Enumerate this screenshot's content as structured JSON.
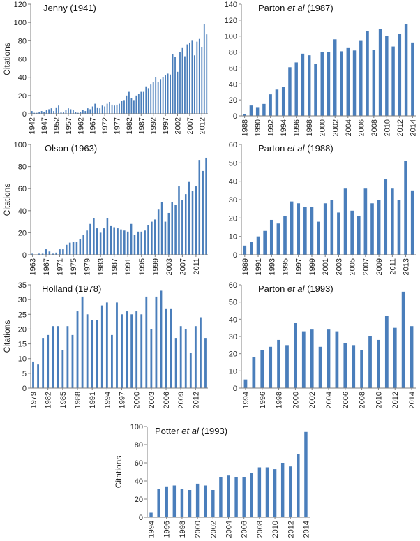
{
  "figure": {
    "ylabel": "Citations",
    "bar_color": "#4a7ebb",
    "axis_color": "#808080"
  },
  "chart_data": [
    {
      "id": "jenny",
      "type": "bar",
      "title": "Jenny (1941)",
      "title_parts": [
        {
          "text": "Jenny (1941)",
          "italic": false
        }
      ],
      "ylabel": "Citations",
      "xlabel": "",
      "ylim": [
        0,
        120
      ],
      "yticks": [
        0,
        20,
        40,
        60,
        80,
        100,
        120
      ],
      "x_start": 1942,
      "x_end": 2014,
      "xtick_labels": [
        "1942",
        "1947",
        "1952",
        "1957",
        "1962",
        "1967",
        "1972",
        "1977",
        "1982",
        "1987",
        "1992",
        "1997",
        "2002",
        "2007",
        "2012"
      ],
      "values": [
        3,
        1,
        1,
        2,
        3,
        2,
        4,
        5,
        6,
        3,
        7,
        9,
        2,
        2,
        4,
        6,
        5,
        4,
        2,
        1,
        2,
        4,
        3,
        6,
        5,
        8,
        11,
        7,
        6,
        9,
        8,
        11,
        13,
        10,
        9,
        10,
        11,
        14,
        15,
        20,
        24,
        17,
        15,
        20,
        22,
        24,
        24,
        30,
        28,
        32,
        35,
        40,
        35,
        38,
        40,
        42,
        44,
        43,
        65,
        62,
        46,
        68,
        72,
        63,
        76,
        78,
        80,
        64,
        79,
        82,
        73,
        98,
        87
      ]
    },
    {
      "id": "parton1987",
      "type": "bar",
      "title": "Parton et al (1987)",
      "title_parts": [
        {
          "text": "Parton ",
          "italic": false
        },
        {
          "text": "et al",
          "italic": true
        },
        {
          "text": " (1987)",
          "italic": false
        }
      ],
      "ylabel": "",
      "xlabel": "",
      "ylim": [
        0,
        140
      ],
      "yticks": [
        0,
        20,
        40,
        60,
        80,
        100,
        120,
        140
      ],
      "x_start": 1988,
      "x_end": 2014,
      "xtick_labels": [
        "1988",
        "1990",
        "1992",
        "1994",
        "1996",
        "1998",
        "2000",
        "2002",
        "2004",
        "2006",
        "2008",
        "2010",
        "2012",
        "2014"
      ],
      "values": [
        2,
        13,
        11,
        15,
        27,
        33,
        36,
        61,
        67,
        78,
        76,
        65,
        80,
        80,
        96,
        81,
        85,
        82,
        94,
        106,
        83,
        109,
        100,
        87,
        103,
        115,
        92
      ]
    },
    {
      "id": "olson",
      "type": "bar",
      "title": "Olson (1963)",
      "title_parts": [
        {
          "text": "Olson (1963)",
          "italic": false
        }
      ],
      "ylabel": "Citations",
      "xlabel": "",
      "ylim": [
        0,
        100
      ],
      "yticks": [
        0,
        20,
        40,
        60,
        80,
        100
      ],
      "x_start": 1963,
      "x_end": 2014,
      "xtick_labels": [
        "1963",
        "1967",
        "1971",
        "1975",
        "1979",
        "1983",
        "1987",
        "1991",
        "1995",
        "1999",
        "2003",
        "2007",
        "2011"
      ],
      "values": [
        1,
        0,
        1,
        1,
        5,
        3,
        1,
        2,
        5,
        5,
        9,
        11,
        12,
        12,
        14,
        18,
        22,
        28,
        33,
        24,
        20,
        24,
        33,
        26,
        25,
        24,
        23,
        22,
        21,
        28,
        18,
        21,
        21,
        22,
        27,
        30,
        32,
        41,
        48,
        30,
        38,
        48,
        45,
        62,
        50,
        55,
        66,
        58,
        62,
        86,
        76,
        88
      ]
    },
    {
      "id": "parton1988",
      "type": "bar",
      "title": "Parton et al (1988)",
      "title_parts": [
        {
          "text": "Parton ",
          "italic": false
        },
        {
          "text": "et al",
          "italic": true
        },
        {
          "text": " (1988)",
          "italic": false
        }
      ],
      "ylabel": "",
      "xlabel": "",
      "ylim": [
        0,
        60
      ],
      "yticks": [
        0,
        10,
        20,
        30,
        40,
        50,
        60
      ],
      "x_start": 1989,
      "x_end": 2014,
      "xtick_labels": [
        "1989",
        "1991",
        "1993",
        "1995",
        "1997",
        "1999",
        "2001",
        "2003",
        "2005",
        "2007",
        "2009",
        "2011",
        "2013"
      ],
      "values": [
        5,
        7,
        10,
        13,
        19,
        17,
        21,
        29,
        28,
        26,
        26,
        18,
        28,
        30,
        23,
        36,
        24,
        21,
        36,
        28,
        30,
        41,
        36,
        30,
        51,
        35
      ]
    },
    {
      "id": "holland",
      "type": "bar",
      "title": "Holland (1978)",
      "title_parts": [
        {
          "text": "Holland (1978)",
          "italic": false
        }
      ],
      "ylabel": "Citations",
      "xlabel": "",
      "ylim": [
        0,
        35
      ],
      "yticks": [
        0,
        5,
        10,
        15,
        20,
        25,
        30,
        35
      ],
      "x_start": 1979,
      "x_end": 2014,
      "xtick_labels": [
        "1979",
        "1982",
        "1985",
        "1988",
        "1991",
        "1994",
        "1997",
        "2000",
        "2003",
        "2006",
        "2009",
        "2012"
      ],
      "values": [
        9,
        8,
        17,
        18,
        21,
        21,
        13,
        21,
        18,
        26,
        31,
        25,
        23,
        23,
        28,
        29,
        18,
        29,
        25,
        26,
        25,
        26,
        25,
        31,
        20,
        31,
        33,
        27,
        27,
        17,
        21,
        20,
        12,
        21,
        24,
        17
      ]
    },
    {
      "id": "parton1993",
      "type": "bar",
      "title": "Parton et al (1993)",
      "title_parts": [
        {
          "text": "Parton ",
          "italic": false
        },
        {
          "text": "et al",
          "italic": true
        },
        {
          "text": " (1993)",
          "italic": false
        }
      ],
      "ylabel": "",
      "xlabel": "",
      "ylim": [
        0,
        60
      ],
      "yticks": [
        0,
        10,
        20,
        30,
        40,
        50,
        60
      ],
      "x_start": 1994,
      "x_end": 2014,
      "xtick_labels": [
        "1994",
        "1996",
        "1998",
        "2000",
        "2002",
        "2004",
        "2006",
        "2008",
        "2010",
        "2012",
        "2014"
      ],
      "values": [
        5,
        18,
        22,
        24,
        28,
        25,
        38,
        33,
        34,
        24,
        34,
        33,
        26,
        25,
        22,
        30,
        28,
        42,
        35,
        56,
        36
      ]
    },
    {
      "id": "potter",
      "type": "bar",
      "title": "Potter et al (1993)",
      "title_parts": [
        {
          "text": "Potter ",
          "italic": false
        },
        {
          "text": "et al",
          "italic": true
        },
        {
          "text": " (1993)",
          "italic": false
        }
      ],
      "ylabel": "Citations",
      "xlabel": "",
      "ylim": [
        0,
        100
      ],
      "yticks": [
        0,
        20,
        40,
        60,
        80,
        100
      ],
      "x_start": 1994,
      "x_end": 2014,
      "xtick_labels": [
        "1994",
        "1996",
        "1998",
        "2000",
        "2002",
        "2004",
        "2006",
        "2008",
        "2010",
        "2012",
        "2014"
      ],
      "values": [
        5,
        31,
        34,
        35,
        31,
        30,
        37,
        35,
        30,
        44,
        46,
        44,
        44,
        49,
        55,
        55,
        53,
        60,
        56,
        70,
        94
      ]
    }
  ]
}
